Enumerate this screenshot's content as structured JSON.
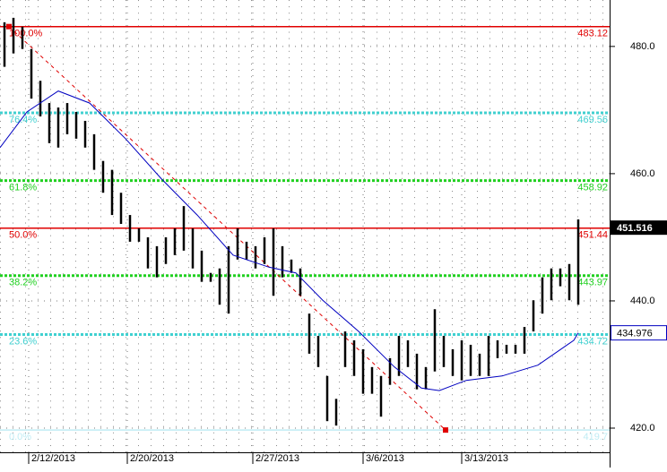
{
  "chart_data": {
    "type": "ohlc",
    "xlim": [
      -0.5,
      67.5
    ],
    "ylim": [
      416.2,
      487.3
    ],
    "yticks": [
      {
        "value": 480,
        "label": "480.0"
      },
      {
        "value": 460,
        "label": "460.0"
      },
      {
        "value": 440,
        "label": "440.0"
      },
      {
        "value": 420,
        "label": "420.0"
      }
    ],
    "xticks": [
      {
        "value": 2.7,
        "label": "2/12/2013"
      },
      {
        "value": 13.7,
        "label": "2/20/2013"
      },
      {
        "value": 27.7,
        "label": "2/27/2013"
      },
      {
        "value": 40,
        "label": "3/6/2013"
      },
      {
        "value": 51,
        "label": "3/13/2013"
      }
    ],
    "grid": true,
    "color": "#000000",
    "x": [
      0,
      1,
      2,
      3,
      4,
      5,
      6,
      7,
      8,
      9,
      10,
      11,
      12,
      13,
      14,
      15,
      16,
      17,
      18,
      19,
      20,
      21,
      22,
      23,
      24,
      25,
      26,
      27,
      28,
      29,
      30,
      31,
      32,
      33,
      34,
      35,
      36,
      37,
      38,
      39,
      40,
      41,
      42,
      43,
      44,
      45,
      46,
      47,
      48,
      49,
      50,
      51,
      52,
      53,
      54,
      55,
      56,
      57,
      58,
      59,
      60,
      61,
      62,
      63,
      64
    ],
    "high": [
      483.8,
      484.5,
      483.1,
      479.6,
      474.6,
      471.1,
      470.4,
      471.1,
      469.7,
      468.3,
      466.2,
      462.0,
      460.6,
      457.0,
      453.5,
      451.4,
      450.0,
      448.6,
      450.0,
      451.4,
      454.9,
      451.4,
      447.9,
      444.4,
      445.1,
      448.6,
      451.4,
      449.3,
      448.6,
      450.0,
      451.4,
      448.6,
      446.5,
      445.1,
      438.0,
      434.5,
      428.2,
      424.6,
      435.2,
      433.8,
      432.4,
      429.6,
      428.2,
      431.0,
      434.5,
      433.8,
      431.7,
      429.6,
      438.7,
      434.5,
      432.4,
      433.8,
      433.1,
      431.7,
      434.5,
      433.8,
      433.1,
      433.1,
      435.9,
      440.1,
      443.7,
      445.1,
      445.1,
      445.8,
      452.8
    ],
    "low": [
      476.8,
      478.9,
      479.6,
      471.8,
      469.0,
      464.8,
      464.1,
      466.2,
      465.5,
      464.1,
      460.6,
      457.0,
      453.5,
      452.1,
      449.3,
      449.3,
      445.1,
      443.7,
      445.8,
      447.2,
      447.9,
      445.1,
      443.0,
      443.0,
      439.4,
      438.0,
      446.5,
      446.5,
      445.1,
      445.8,
      440.8,
      443.7,
      444.4,
      440.8,
      431.7,
      429.6,
      421.1,
      420.4,
      429.6,
      428.2,
      425.4,
      425.4,
      421.8,
      426.8,
      428.2,
      429.6,
      426.1,
      426.1,
      428.9,
      429.6,
      428.2,
      427.5,
      428.2,
      428.2,
      428.2,
      431.0,
      431.7,
      431.7,
      431.7,
      435.2,
      438.0,
      440.1,
      442.3,
      440.1,
      439.4
    ],
    "last_price": 451.516,
    "moving_average": {
      "color": "#0000c0",
      "x": [
        -0.5,
        2.5,
        6,
        9.5,
        13.5,
        17.5,
        21.5,
        25.5,
        29.5,
        32.5,
        35.5,
        39.5,
        43.5,
        46.5,
        48.5,
        51.5,
        55.5,
        59.5,
        63.5,
        64
      ],
      "values": [
        464.1,
        469.7,
        473.0,
        471.1,
        465.5,
        459.2,
        453.5,
        447.2,
        445.3,
        444.4,
        440.1,
        435.2,
        429.6,
        426.3,
        425.9,
        427.5,
        428.2,
        429.9,
        433.8,
        434.976
      ]
    },
    "fib": {
      "x": [
        0.5,
        49.2
      ],
      "color": "#e00000",
      "levels": [
        {
          "label": "100.0%",
          "value": 483.12,
          "color": "#e00000"
        },
        {
          "label": "76.4%",
          "value": 469.56,
          "color": "#40d0d0"
        },
        {
          "label": "61.8%",
          "value": 458.92,
          "color": "#20d020"
        },
        {
          "label": "50.0%",
          "value": 451.44,
          "color": "#e00000"
        },
        {
          "label": "38.2%",
          "value": 443.97,
          "color": "#20d020"
        },
        {
          "label": "23.6%",
          "value": 434.72,
          "color": "#40d0d0"
        },
        {
          "label": "0.0%",
          "value": 419.7,
          "color": "#c0ecf4"
        }
      ]
    }
  }
}
